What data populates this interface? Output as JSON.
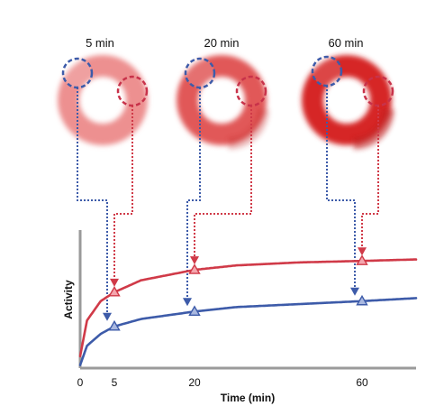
{
  "chart_data": {
    "type": "line",
    "title": "",
    "xlabel": "Time (min)",
    "ylabel": "Activity",
    "xlim": [
      0,
      72
    ],
    "x_ticks": [
      "0",
      "5",
      "20",
      "60"
    ],
    "grid": false,
    "legend": "none",
    "series": [
      {
        "color": "#d03a48",
        "curve": {
          "x": [
            0,
            1,
            3,
            5,
            10,
            20,
            30,
            45,
            60,
            72
          ],
          "y": [
            0.08,
            0.32,
            0.45,
            0.51,
            0.59,
            0.66,
            0.69,
            0.71,
            0.72,
            0.73
          ]
        },
        "markers": {
          "x": [
            5,
            20,
            60
          ],
          "y": [
            0.51,
            0.66,
            0.72
          ]
        }
      },
      {
        "color": "#3d5ba9",
        "curve": {
          "x": [
            0,
            1,
            3,
            5,
            10,
            20,
            30,
            45,
            60,
            72
          ],
          "y": [
            0.02,
            0.15,
            0.23,
            0.28,
            0.33,
            0.38,
            0.41,
            0.43,
            0.45,
            0.47
          ]
        },
        "markers": {
          "x": [
            5,
            20,
            60
          ],
          "y": [
            0.28,
            0.38,
            0.45
          ]
        }
      }
    ],
    "rings": [
      {
        "label": "5 min",
        "time": 5,
        "intensity": 0.35
      },
      {
        "label": "20 min",
        "time": 20,
        "intensity": 0.7
      },
      {
        "label": "60 min",
        "time": 60,
        "intensity": 1.0
      }
    ]
  }
}
